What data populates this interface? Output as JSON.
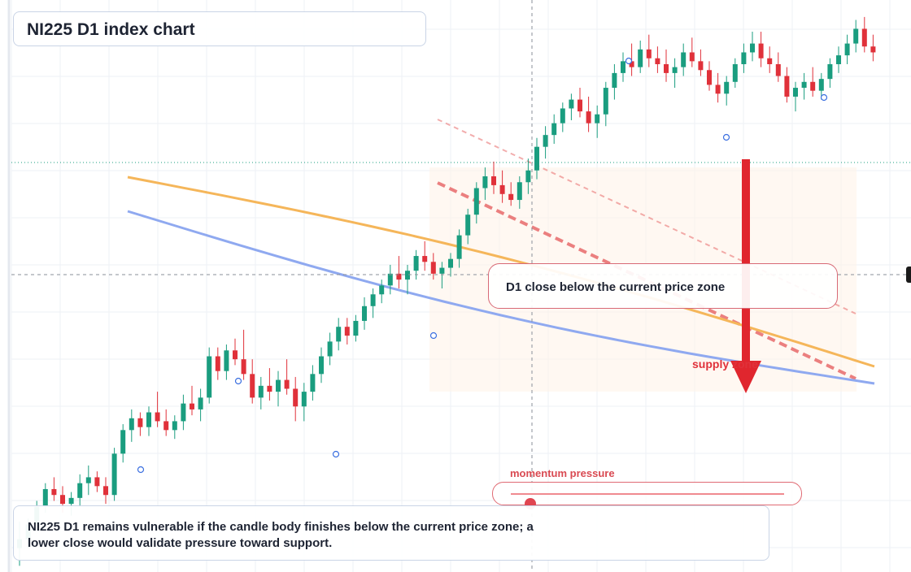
{
  "title": "NI225 D1 index chart",
  "callout_text": "D1 close below the current price zone",
  "supply_label": "supply zone",
  "momentum": {
    "label": "momentum pressure",
    "level": 0.07
  },
  "summary": "NI225 D1 remains vulnerable if the candle body finishes below the current price zone; a lower close would validate pressure toward support.",
  "colors": {
    "bull": "#1a9d7f",
    "bear": "#e0313a",
    "ma_orange": "#f5b65a",
    "ma_blue": "#8fa9f0",
    "arrow": "#e0262e",
    "trend_line": "#e86b6b"
  },
  "chart_data": {
    "type": "candlestick",
    "title": "NI225 D1 index chart",
    "grid": true,
    "series": [
      {
        "type": "ohlc",
        "values": [
          [
            14,
            32,
            2,
            20
          ],
          [
            20,
            34,
            14,
            30
          ],
          [
            30,
            46,
            26,
            42
          ],
          [
            42,
            58,
            38,
            54
          ],
          [
            54,
            62,
            46,
            50
          ],
          [
            50,
            56,
            38,
            44
          ],
          [
            44,
            52,
            36,
            48
          ],
          [
            48,
            64,
            42,
            58
          ],
          [
            58,
            70,
            50,
            62
          ],
          [
            62,
            66,
            52,
            56
          ],
          [
            56,
            62,
            44,
            50
          ],
          [
            50,
            82,
            46,
            78
          ],
          [
            78,
            98,
            72,
            94
          ],
          [
            94,
            108,
            86,
            102
          ],
          [
            102,
            106,
            90,
            96
          ],
          [
            96,
            110,
            90,
            106
          ],
          [
            106,
            120,
            96,
            100
          ],
          [
            100,
            108,
            90,
            94
          ],
          [
            94,
            104,
            88,
            100
          ],
          [
            100,
            118,
            94,
            112
          ],
          [
            112,
            124,
            104,
            108
          ],
          [
            108,
            122,
            100,
            116
          ],
          [
            116,
            150,
            112,
            144
          ],
          [
            144,
            150,
            128,
            134
          ],
          [
            134,
            152,
            128,
            148
          ],
          [
            148,
            156,
            138,
            142
          ],
          [
            142,
            162,
            128,
            132
          ],
          [
            132,
            142,
            112,
            116
          ],
          [
            116,
            130,
            108,
            124
          ],
          [
            124,
            136,
            114,
            120
          ],
          [
            120,
            134,
            110,
            128
          ],
          [
            128,
            142,
            118,
            122
          ],
          [
            122,
            130,
            100,
            110
          ],
          [
            110,
            126,
            100,
            120
          ],
          [
            120,
            138,
            114,
            132
          ],
          [
            132,
            150,
            126,
            144
          ],
          [
            144,
            160,
            138,
            154
          ],
          [
            154,
            170,
            148,
            164
          ],
          [
            164,
            170,
            152,
            158
          ],
          [
            158,
            172,
            154,
            168
          ],
          [
            168,
            184,
            162,
            178
          ],
          [
            178,
            190,
            170,
            186
          ],
          [
            186,
            196,
            180,
            192
          ],
          [
            192,
            206,
            186,
            200
          ],
          [
            200,
            212,
            190,
            196
          ],
          [
            196,
            206,
            186,
            202
          ],
          [
            202,
            216,
            196,
            212
          ],
          [
            212,
            222,
            202,
            208
          ],
          [
            208,
            214,
            196,
            200
          ],
          [
            200,
            208,
            190,
            204
          ],
          [
            204,
            214,
            198,
            210
          ],
          [
            210,
            230,
            204,
            226
          ],
          [
            226,
            244,
            220,
            240
          ],
          [
            240,
            262,
            234,
            258
          ],
          [
            258,
            272,
            250,
            266
          ],
          [
            266,
            276,
            254,
            260
          ],
          [
            260,
            270,
            248,
            254
          ],
          [
            254,
            262,
            246,
            250
          ],
          [
            250,
            266,
            244,
            262
          ],
          [
            262,
            278,
            254,
            270
          ],
          [
            270,
            292,
            264,
            286
          ],
          [
            286,
            300,
            278,
            294
          ],
          [
            294,
            308,
            288,
            302
          ],
          [
            302,
            316,
            296,
            312
          ],
          [
            312,
            322,
            304,
            318
          ],
          [
            318,
            326,
            306,
            310
          ],
          [
            310,
            320,
            296,
            302
          ],
          [
            302,
            314,
            292,
            308
          ],
          [
            308,
            330,
            300,
            326
          ],
          [
            326,
            342,
            318,
            336
          ],
          [
            336,
            350,
            330,
            344
          ],
          [
            344,
            356,
            334,
            340
          ],
          [
            340,
            358,
            336,
            352
          ],
          [
            352,
            362,
            340,
            346
          ],
          [
            346,
            354,
            336,
            342
          ],
          [
            342,
            352,
            330,
            336
          ],
          [
            336,
            346,
            326,
            340
          ],
          [
            340,
            356,
            334,
            350
          ],
          [
            350,
            360,
            340,
            344
          ],
          [
            344,
            352,
            334,
            338
          ],
          [
            338,
            344,
            324,
            328
          ],
          [
            328,
            336,
            316,
            322
          ],
          [
            322,
            334,
            314,
            330
          ],
          [
            330,
            346,
            326,
            342
          ],
          [
            342,
            356,
            336,
            350
          ],
          [
            350,
            364,
            344,
            356
          ],
          [
            356,
            364,
            340,
            346
          ],
          [
            346,
            354,
            336,
            342
          ],
          [
            342,
            350,
            330,
            334
          ],
          [
            334,
            340,
            316,
            320
          ],
          [
            320,
            330,
            310,
            326
          ],
          [
            326,
            336,
            318,
            330
          ],
          [
            330,
            340,
            320,
            324
          ],
          [
            324,
            336,
            318,
            332
          ],
          [
            332,
            346,
            326,
            342
          ],
          [
            342,
            354,
            336,
            348
          ],
          [
            348,
            362,
            342,
            356
          ],
          [
            356,
            372,
            350,
            366
          ],
          [
            366,
            374,
            350,
            354
          ],
          [
            354,
            362,
            344,
            350
          ]
        ]
      }
    ]
  }
}
